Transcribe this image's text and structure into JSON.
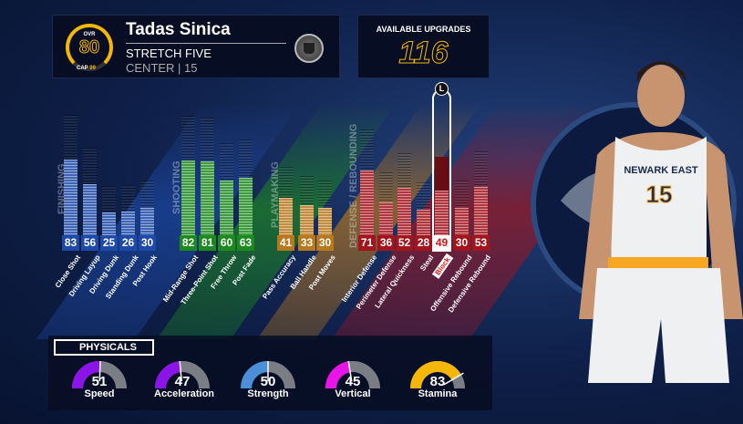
{
  "player": {
    "ovr_label": "OVR",
    "ovr": "80",
    "cap_label": "CAP",
    "cap": "99",
    "name": "Tadas Sinica",
    "archetype": "STRETCH FIVE",
    "position": "CENTER | 15",
    "badge_icon": "bucket-badge-icon"
  },
  "upgrades": {
    "label": "AVAILABLE UPGRADES",
    "value": "116"
  },
  "groups": [
    {
      "title": "FINISHING",
      "color": "#1d4aa8",
      "attrs": [
        {
          "name": "Close Shot",
          "value": 83
        },
        {
          "name": "Driving Layup",
          "value": 56
        },
        {
          "name": "Driving Dunk",
          "value": 25
        },
        {
          "name": "Standing Dunk",
          "value": 26
        },
        {
          "name": "Post Hook",
          "value": 30
        }
      ]
    },
    {
      "title": "SHOOTING",
      "color": "#1c8a1f",
      "attrs": [
        {
          "name": "Mid-Range Shot",
          "value": 82
        },
        {
          "name": "Three-Point Shot",
          "value": 81
        },
        {
          "name": "Free Throw",
          "value": 60
        },
        {
          "name": "Post Fade",
          "value": 63
        }
      ]
    },
    {
      "title": "PLAYMAKING",
      "color": "#b8781d",
      "attrs": [
        {
          "name": "Pass Accuracy",
          "value": 41
        },
        {
          "name": "Ball Handle",
          "value": 33
        },
        {
          "name": "Post Moves",
          "value": 30
        }
      ]
    },
    {
      "title": "DEFENSE / REBOUNDING",
      "color": "#a3141c",
      "attrs": [
        {
          "name": "Interior Defense",
          "value": 71
        },
        {
          "name": "Perimeter Defense",
          "value": 36
        },
        {
          "name": "Lateral Quickness",
          "value": 52
        },
        {
          "name": "Steal",
          "value": 28
        },
        {
          "name": "Block",
          "value": 49,
          "selected": true,
          "locked_icon": "L"
        },
        {
          "name": "Offensive Rebound",
          "value": 30
        },
        {
          "name": "Defensive Rebound",
          "value": 53
        }
      ]
    }
  ],
  "physicals": {
    "title": "PHYSICALS",
    "items": [
      {
        "name": "Speed",
        "value": 51,
        "color": "#8b14e8"
      },
      {
        "name": "Acceleration",
        "value": 47,
        "color": "#8b14e8"
      },
      {
        "name": "Strength",
        "value": 50,
        "color": "#4a8fd8"
      },
      {
        "name": "Vertical",
        "value": 45,
        "color": "#e814e8"
      },
      {
        "name": "Stamina",
        "value": 83,
        "color": "#f5b60a"
      }
    ]
  },
  "jersey": {
    "team": "NEWARK EAST",
    "number": "15"
  }
}
